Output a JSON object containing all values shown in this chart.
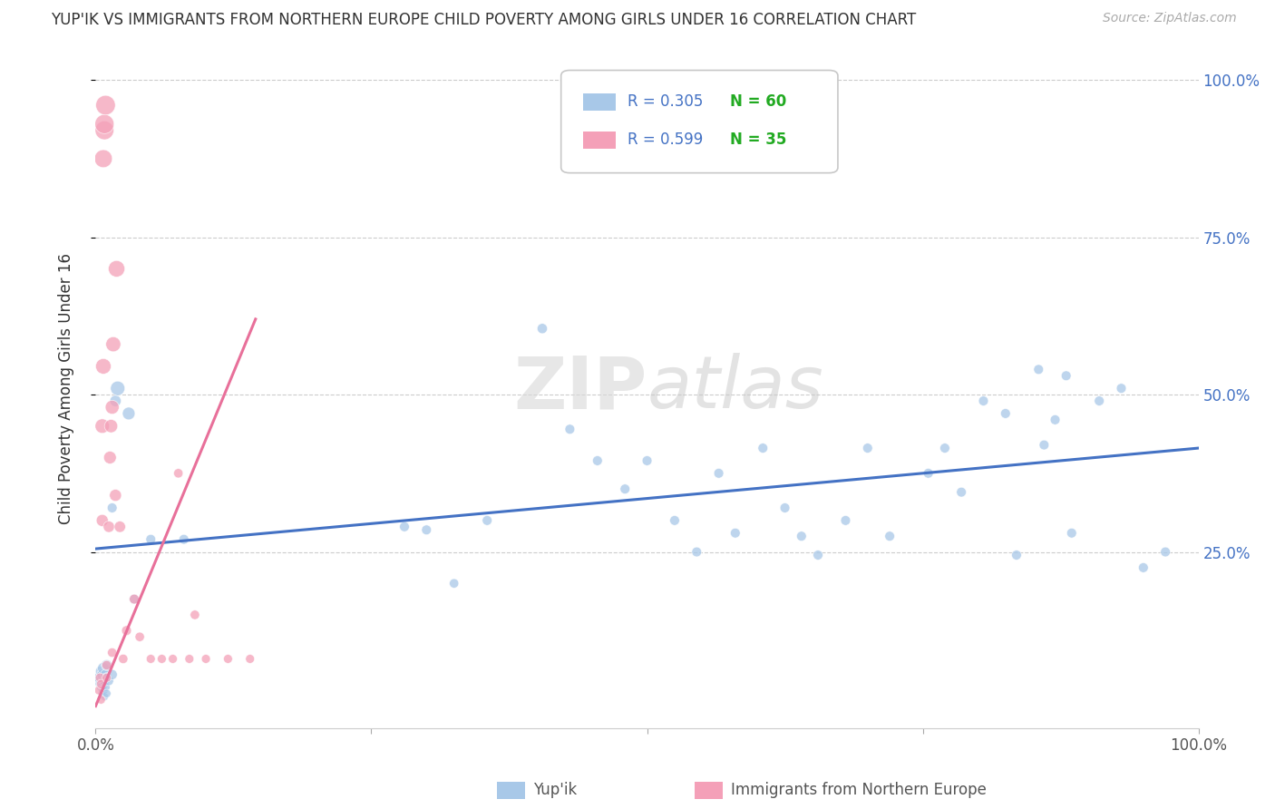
{
  "title": "YUP'IK VS IMMIGRANTS FROM NORTHERN EUROPE CHILD POVERTY AMONG GIRLS UNDER 16 CORRELATION CHART",
  "source": "Source: ZipAtlas.com",
  "ylabel": "Child Poverty Among Girls Under 16",
  "watermark_zip": "ZIP",
  "watermark_atlas": "atlas",
  "blue_color": "#a8c8e8",
  "pink_color": "#f4a0b8",
  "trend_blue": "#4472c4",
  "trend_pink": "#e8709a",
  "legend_r_color": "#4472c4",
  "legend_n_color": "#28b028",
  "blue_label": "Yup'ik",
  "pink_label": "Immigrants from Northern Europe",
  "blue_dots": [
    [
      0.002,
      0.045
    ],
    [
      0.003,
      0.05
    ],
    [
      0.004,
      0.04
    ],
    [
      0.005,
      0.06
    ],
    [
      0.005,
      0.035
    ],
    [
      0.006,
      0.055
    ],
    [
      0.006,
      0.025
    ],
    [
      0.007,
      0.065
    ],
    [
      0.007,
      0.03
    ],
    [
      0.008,
      0.045
    ],
    [
      0.008,
      0.02
    ],
    [
      0.009,
      0.055
    ],
    [
      0.009,
      0.035
    ],
    [
      0.01,
      0.05
    ],
    [
      0.01,
      0.025
    ],
    [
      0.01,
      0.07
    ],
    [
      0.012,
      0.045
    ],
    [
      0.015,
      0.055
    ],
    [
      0.015,
      0.32
    ],
    [
      0.018,
      0.49
    ],
    [
      0.02,
      0.51
    ],
    [
      0.03,
      0.47
    ],
    [
      0.035,
      0.175
    ],
    [
      0.05,
      0.27
    ],
    [
      0.08,
      0.27
    ],
    [
      0.28,
      0.29
    ],
    [
      0.3,
      0.285
    ],
    [
      0.325,
      0.2
    ],
    [
      0.355,
      0.3
    ],
    [
      0.405,
      0.605
    ],
    [
      0.43,
      0.445
    ],
    [
      0.455,
      0.395
    ],
    [
      0.48,
      0.35
    ],
    [
      0.5,
      0.395
    ],
    [
      0.525,
      0.3
    ],
    [
      0.545,
      0.25
    ],
    [
      0.565,
      0.375
    ],
    [
      0.58,
      0.28
    ],
    [
      0.605,
      0.415
    ],
    [
      0.625,
      0.32
    ],
    [
      0.64,
      0.275
    ],
    [
      0.655,
      0.245
    ],
    [
      0.68,
      0.3
    ],
    [
      0.7,
      0.415
    ],
    [
      0.72,
      0.275
    ],
    [
      0.755,
      0.375
    ],
    [
      0.77,
      0.415
    ],
    [
      0.785,
      0.345
    ],
    [
      0.805,
      0.49
    ],
    [
      0.825,
      0.47
    ],
    [
      0.835,
      0.245
    ],
    [
      0.86,
      0.42
    ],
    [
      0.87,
      0.46
    ],
    [
      0.885,
      0.28
    ],
    [
      0.91,
      0.49
    ],
    [
      0.93,
      0.51
    ],
    [
      0.855,
      0.54
    ],
    [
      0.88,
      0.53
    ],
    [
      0.95,
      0.225
    ],
    [
      0.97,
      0.25
    ]
  ],
  "blue_sizes": [
    60,
    70,
    55,
    80,
    50,
    75,
    45,
    85,
    55,
    65,
    40,
    70,
    50,
    65,
    45,
    75,
    55,
    65,
    60,
    80,
    130,
    100,
    60,
    60,
    60,
    60,
    60,
    55,
    60,
    65,
    60,
    60,
    60,
    60,
    60,
    60,
    60,
    60,
    60,
    60,
    60,
    60,
    60,
    60,
    60,
    60,
    60,
    60,
    60,
    60,
    60,
    60,
    60,
    60,
    60,
    60,
    60,
    60,
    60,
    60
  ],
  "pink_dots": [
    [
      0.003,
      0.03
    ],
    [
      0.004,
      0.05
    ],
    [
      0.005,
      0.015
    ],
    [
      0.005,
      0.04
    ],
    [
      0.006,
      0.3
    ],
    [
      0.006,
      0.45
    ],
    [
      0.007,
      0.545
    ],
    [
      0.007,
      0.875
    ],
    [
      0.008,
      0.92
    ],
    [
      0.008,
      0.93
    ],
    [
      0.009,
      0.96
    ],
    [
      0.01,
      0.05
    ],
    [
      0.01,
      0.07
    ],
    [
      0.012,
      0.29
    ],
    [
      0.013,
      0.4
    ],
    [
      0.014,
      0.45
    ],
    [
      0.015,
      0.09
    ],
    [
      0.015,
      0.48
    ],
    [
      0.016,
      0.58
    ],
    [
      0.018,
      0.34
    ],
    [
      0.019,
      0.7
    ],
    [
      0.022,
      0.29
    ],
    [
      0.025,
      0.08
    ],
    [
      0.028,
      0.125
    ],
    [
      0.035,
      0.175
    ],
    [
      0.04,
      0.115
    ],
    [
      0.05,
      0.08
    ],
    [
      0.06,
      0.08
    ],
    [
      0.07,
      0.08
    ],
    [
      0.075,
      0.375
    ],
    [
      0.085,
      0.08
    ],
    [
      0.09,
      0.15
    ],
    [
      0.1,
      0.08
    ],
    [
      0.12,
      0.08
    ],
    [
      0.14,
      0.08
    ]
  ],
  "pink_sizes": [
    50,
    55,
    45,
    55,
    90,
    130,
    150,
    200,
    220,
    230,
    240,
    50,
    55,
    80,
    100,
    110,
    55,
    120,
    140,
    90,
    170,
    80,
    55,
    60,
    60,
    55,
    50,
    50,
    50,
    55,
    50,
    55,
    50,
    50,
    50
  ],
  "blue_trend_x": [
    0.0,
    1.0
  ],
  "blue_trend_y": [
    0.255,
    0.415
  ],
  "pink_trend_x": [
    0.0,
    0.145
  ],
  "pink_trend_y": [
    0.005,
    0.62
  ],
  "xmin": 0.0,
  "xmax": 1.0,
  "ymin": 0.0,
  "ymax": 1.05,
  "xticks": [
    0.0,
    0.25,
    0.5,
    0.75,
    1.0
  ],
  "xtick_labels": [
    "0.0%",
    "",
    "",
    "",
    "100.0%"
  ],
  "yticks": [
    0.25,
    0.5,
    0.75,
    1.0
  ],
  "ytick_labels_right": [
    "25.0%",
    "50.0%",
    "75.0%",
    "100.0%"
  ]
}
